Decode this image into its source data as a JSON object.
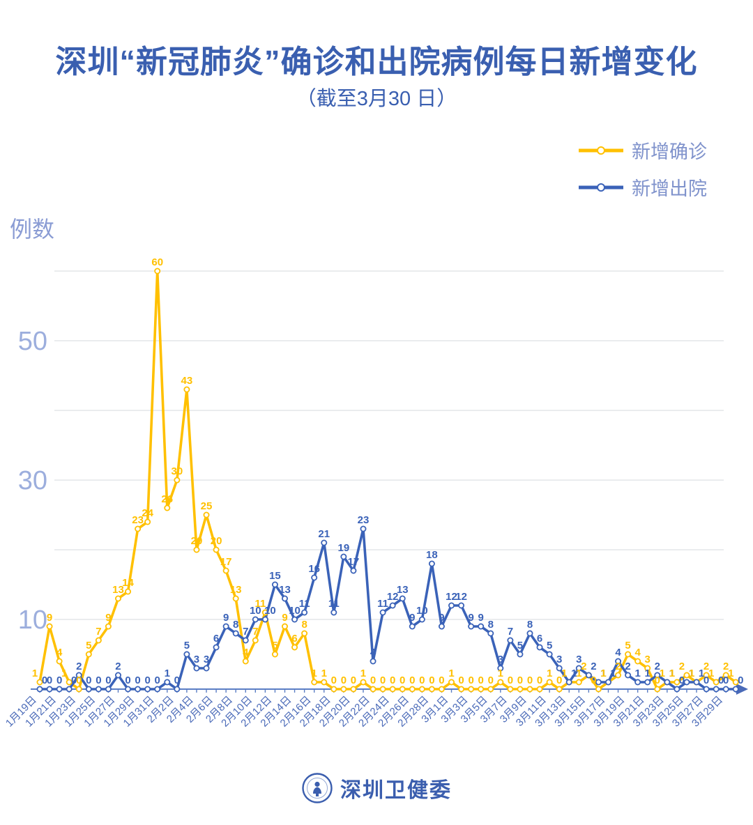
{
  "page": {
    "title": "深圳“新冠肺炎”确诊和出院病例每日新增变化",
    "subtitle": "（截至3月30 日）",
    "footer_logo_text": "深圳卫健委"
  },
  "legend": [
    {
      "label": "新增确诊",
      "color": "#FFC000"
    },
    {
      "label": "新增出院",
      "color": "#3A62B8"
    }
  ],
  "chart_data": {
    "type": "line",
    "title": "深圳“新冠肺炎”确诊和出院病例每日新增变化",
    "subtitle": "（截至3月30日）",
    "ylabel": "例数",
    "xlabel": "",
    "grid": true,
    "legend_position": "top-right",
    "ylim": [
      0,
      62
    ],
    "yticks_labeled": [
      10,
      30,
      50
    ],
    "gridlines": [
      10,
      20,
      30,
      40,
      50,
      60
    ],
    "x_tick_label_interval": 2,
    "dates": [
      "1月19日",
      "1月20日",
      "1月21日",
      "1月22日",
      "1月23日",
      "1月24日",
      "1月25日",
      "1月26日",
      "1月27日",
      "1月28日",
      "1月29日",
      "1月30日",
      "1月31日",
      "2月1日",
      "2月2日",
      "2月3日",
      "2月4日",
      "2月5日",
      "2月6日",
      "2月7日",
      "2月8日",
      "2月9日",
      "2月10日",
      "2月11日",
      "2月12日",
      "2月13日",
      "2月14日",
      "2月15日",
      "2月16日",
      "2月17日",
      "2月18日",
      "2月19日",
      "2月20日",
      "2月21日",
      "2月22日",
      "2月23日",
      "2月24日",
      "2月25日",
      "2月26日",
      "2月27日",
      "2月28日",
      "2月29日",
      "3月1日",
      "3月2日",
      "3月3日",
      "3月4日",
      "3月5日",
      "3月6日",
      "3月7日",
      "3月8日",
      "3月9日",
      "3月10日",
      "3月11日",
      "3月12日",
      "3月13日",
      "3月14日",
      "3月15日",
      "3月16日",
      "3月17日",
      "3月18日",
      "3月19日",
      "3月20日",
      "3月21日",
      "3月22日",
      "3月23日",
      "3月24日",
      "3月25日",
      "3月26日",
      "3月27日",
      "3月28日",
      "3月29日",
      "3月30日"
    ],
    "series": [
      {
        "name": "新增确诊",
        "color": "#FFC000",
        "values": [
          1,
          9,
          4,
          1,
          0,
          5,
          7,
          9,
          13,
          14,
          23,
          24,
          60,
          26,
          30,
          43,
          20,
          25,
          20,
          17,
          13,
          4,
          7,
          11,
          5,
          9,
          6,
          8,
          1,
          1,
          0,
          0,
          0,
          1,
          0,
          0,
          0,
          0,
          0,
          0,
          0,
          0,
          1,
          0,
          0,
          0,
          0,
          1,
          0,
          0,
          0,
          0,
          1,
          0,
          1,
          1,
          2,
          0,
          1,
          2,
          5,
          4,
          3,
          0,
          1,
          1,
          2,
          1,
          2,
          1,
          2,
          1
        ]
      },
      {
        "name": "新增出院",
        "color": "#3A62B8",
        "values": [
          0,
          0,
          0,
          0,
          2,
          0,
          0,
          0,
          2,
          0,
          0,
          0,
          0,
          1,
          0,
          5,
          3,
          3,
          6,
          9,
          8,
          7,
          10,
          10,
          15,
          13,
          10,
          11,
          16,
          21,
          11,
          19,
          17,
          23,
          4,
          11,
          12,
          13,
          9,
          10,
          18,
          9,
          12,
          12,
          9,
          9,
          8,
          3,
          7,
          5,
          8,
          6,
          5,
          3,
          1,
          3,
          2,
          1,
          1,
          4,
          2,
          1,
          1,
          2,
          1,
          0,
          1,
          1,
          0,
          0,
          0,
          0
        ]
      }
    ]
  }
}
